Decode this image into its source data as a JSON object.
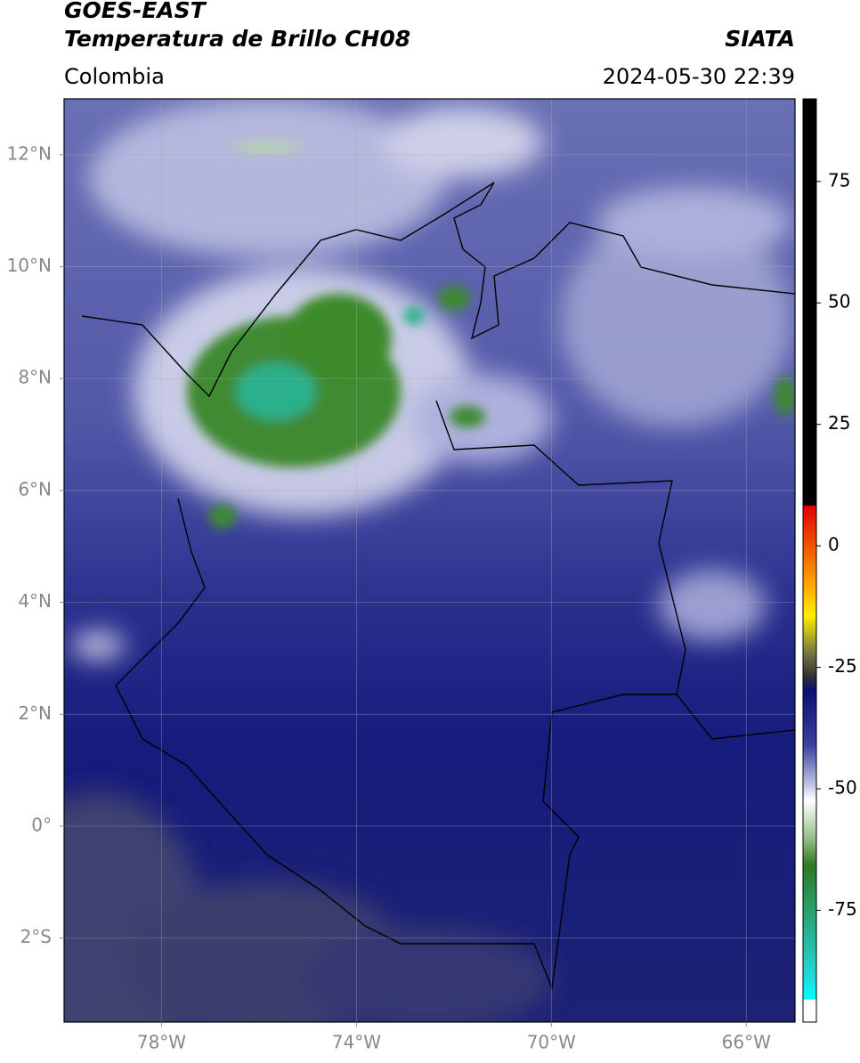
{
  "header": {
    "title": "GOES-EAST",
    "subtitle": "Temperatura de Brillo CH08",
    "region": "Colombia",
    "source": "SIATA",
    "timestamp": "2024-05-30 22:39"
  },
  "map": {
    "lat_lim": [
      -3.5,
      13
    ],
    "lon_lim": [
      -80,
      -65
    ],
    "lat_ticks": [
      {
        "value": 12,
        "label": "12°N"
      },
      {
        "value": 10,
        "label": "10°N"
      },
      {
        "value": 8,
        "label": "8°N"
      },
      {
        "value": 6,
        "label": "6°N"
      },
      {
        "value": 4,
        "label": "4°N"
      },
      {
        "value": 2,
        "label": "2°N"
      },
      {
        "value": 0,
        "label": "0°"
      },
      {
        "value": -2,
        "label": "2°S"
      }
    ],
    "lon_ticks": [
      {
        "value": -78,
        "label": "78°W"
      },
      {
        "value": -74,
        "label": "74°W"
      },
      {
        "value": -70,
        "label": "70°W"
      },
      {
        "value": -66,
        "label": "66°W"
      }
    ],
    "grid": true
  },
  "colorbar": {
    "lim": [
      -98,
      92
    ],
    "ticks": [
      75,
      50,
      25,
      0,
      -25,
      -50,
      -75
    ]
  }
}
